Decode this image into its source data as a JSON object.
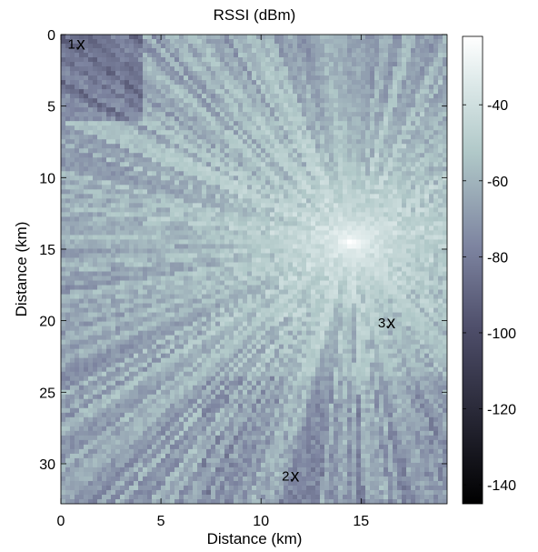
{
  "chart_data": {
    "type": "heatmap",
    "title": "RSSI (dBm)",
    "xlabel": "Distance (km)",
    "ylabel": "Distance (km)",
    "xlim": [
      0,
      19.3
    ],
    "ylim": [
      32.8,
      0
    ],
    "x_ticks": [
      0,
      5,
      10,
      15
    ],
    "y_ticks": [
      0,
      5,
      10,
      15,
      20,
      25,
      30
    ],
    "colorbar": {
      "range": [
        -145,
        -22
      ],
      "ticks": [
        -40,
        -60,
        -80,
        -100,
        -120,
        -140
      ],
      "colormap": "bone"
    },
    "transmitter": {
      "x": 14.5,
      "y": 14.5,
      "rssi": -25
    },
    "markers": [
      {
        "label": "1.",
        "symbol": "x",
        "x": 1.0,
        "y": 0.6
      },
      {
        "label": "2.",
        "symbol": "x",
        "x": 11.7,
        "y": 30.8
      },
      {
        "label": "3.",
        "symbol": "x",
        "x": 16.5,
        "y": 20.1
      }
    ]
  },
  "colors": {
    "cmap_low": "#000000",
    "cmap_mid": "#6f7591",
    "cmap_high_mid": "#c8dcdc",
    "cmap_high": "#ffffff"
  }
}
